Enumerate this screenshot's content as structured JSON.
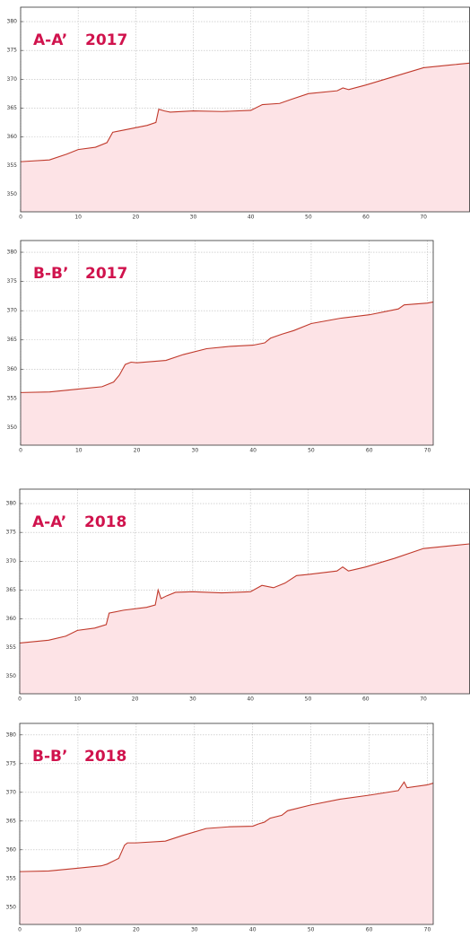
{
  "chart_data": [
    {
      "type": "area",
      "annotations": [
        "A-A’",
        "2017"
      ],
      "color": "#c0392b",
      "fill": "#fde3e6",
      "x": [
        0,
        5,
        8,
        10,
        13,
        15,
        16,
        18,
        22,
        23.5,
        24,
        25,
        26,
        30,
        35,
        40,
        42,
        45,
        47,
        50,
        55,
        56,
        57,
        60,
        65,
        70,
        75,
        78
      ],
      "values": [
        355.7,
        356,
        357,
        357.8,
        358.2,
        359,
        360.8,
        361.2,
        362,
        362.5,
        364.8,
        364.5,
        364.3,
        364.5,
        364.4,
        364.6,
        365.6,
        365.8,
        366.5,
        367.5,
        368,
        368.5,
        368.2,
        369,
        370.5,
        372,
        372.5,
        372.8
      ],
      "xlim": [
        0,
        78
      ],
      "ylim": [
        347,
        382.5
      ],
      "xticks": [
        0,
        10,
        20,
        30,
        40,
        50,
        60,
        70
      ],
      "yticks": [
        350,
        355,
        360,
        365,
        370,
        375,
        380
      ],
      "grid": true
    },
    {
      "type": "area",
      "annotations": [
        "B-B’",
        "2017"
      ],
      "color": "#c0392b",
      "fill": "#fde3e6",
      "x": [
        0,
        5,
        10,
        14,
        16,
        17,
        18,
        19,
        20,
        25,
        28,
        32,
        36,
        40,
        42,
        43,
        45,
        47,
        50,
        55,
        60,
        65,
        66,
        70,
        71
      ],
      "values": [
        356,
        356.1,
        356.6,
        357,
        357.8,
        359,
        360.8,
        361.2,
        361.1,
        361.5,
        362.5,
        363.5,
        363.9,
        364.1,
        364.5,
        365.3,
        366,
        366.6,
        367.8,
        368.7,
        369.3,
        370.3,
        371,
        371.3,
        371.5
      ],
      "xlim": [
        0,
        71
      ],
      "ylim": [
        347,
        382
      ],
      "xticks": [
        0,
        10,
        20,
        30,
        40,
        50,
        60,
        70
      ],
      "yticks": [
        350,
        355,
        360,
        365,
        370,
        375,
        380
      ],
      "grid": true
    },
    {
      "type": "area",
      "annotations": [
        "A-A’",
        "2018"
      ],
      "color": "#c0392b",
      "fill": "#fde3e6",
      "x": [
        0,
        5,
        8,
        10,
        13,
        15,
        15.5,
        18,
        22,
        23.5,
        24,
        24.5,
        25.5,
        27,
        30,
        35,
        40,
        42,
        44,
        46,
        48,
        50,
        55,
        56,
        57,
        60,
        65,
        70,
        78
      ],
      "values": [
        355.8,
        356.3,
        357,
        358,
        358.4,
        359,
        361,
        361.5,
        362,
        362.4,
        365,
        363.5,
        364,
        364.6,
        364.7,
        364.5,
        364.7,
        365.8,
        365.4,
        366.2,
        367.5,
        367.7,
        368.3,
        369,
        368.3,
        369,
        370.5,
        372.2,
        373
      ],
      "xlim": [
        0,
        78
      ],
      "ylim": [
        347,
        382.5
      ],
      "xticks": [
        0,
        10,
        20,
        30,
        40,
        50,
        60,
        70
      ],
      "yticks": [
        350,
        355,
        360,
        365,
        370,
        375,
        380
      ],
      "grid": true
    },
    {
      "type": "area",
      "annotations": [
        "B-B’",
        "2018"
      ],
      "color": "#c0392b",
      "fill": "#fde3e6",
      "x": [
        0,
        5,
        10,
        14,
        15,
        17,
        18,
        18.5,
        20,
        25,
        28,
        32,
        36,
        40,
        41,
        42,
        43,
        45,
        46,
        50,
        55,
        60,
        65,
        66,
        66.5,
        70,
        71
      ],
      "values": [
        356.2,
        356.3,
        356.8,
        357.2,
        357.5,
        358.5,
        360.8,
        361.2,
        361.2,
        361.5,
        362.5,
        363.7,
        364,
        364.1,
        364.5,
        364.8,
        365.5,
        366,
        366.8,
        367.8,
        368.8,
        369.5,
        370.3,
        371.8,
        370.8,
        371.3,
        371.6
      ],
      "xlim": [
        0,
        71
      ],
      "ylim": [
        347,
        382
      ],
      "xticks": [
        0,
        10,
        20,
        30,
        40,
        50,
        60,
        70
      ],
      "yticks": [
        350,
        355,
        360,
        365,
        370,
        375,
        380
      ],
      "grid": true
    }
  ]
}
